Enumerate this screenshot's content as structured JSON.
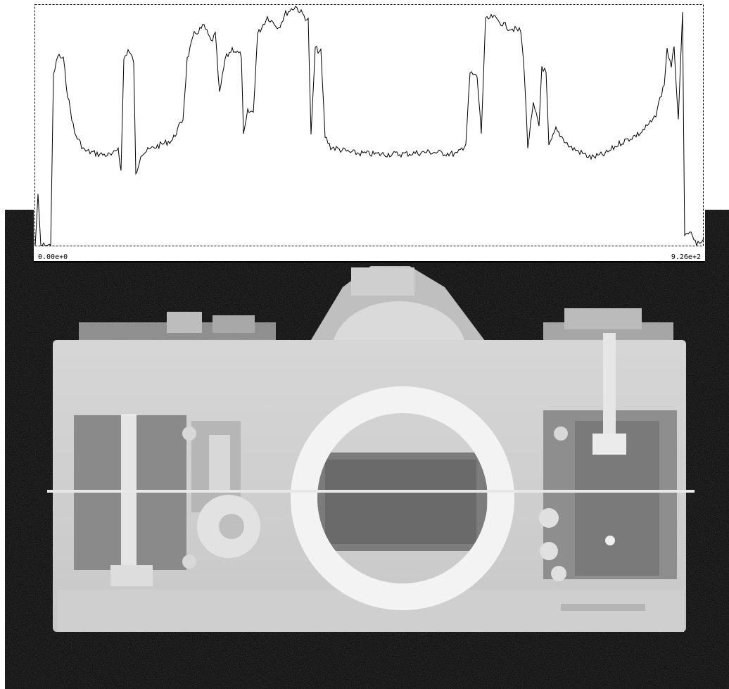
{
  "profile_plot": {
    "x_axis_min_label": "0.00e+0",
    "x_axis_max_label": "9.26e+2",
    "line_color": "#000000",
    "frame_style": "dashed",
    "background": "#ffffff"
  },
  "xray_image": {
    "subject": "camera-body-xray",
    "background": "#000000",
    "scanline_color": "#e8e8e8"
  }
}
